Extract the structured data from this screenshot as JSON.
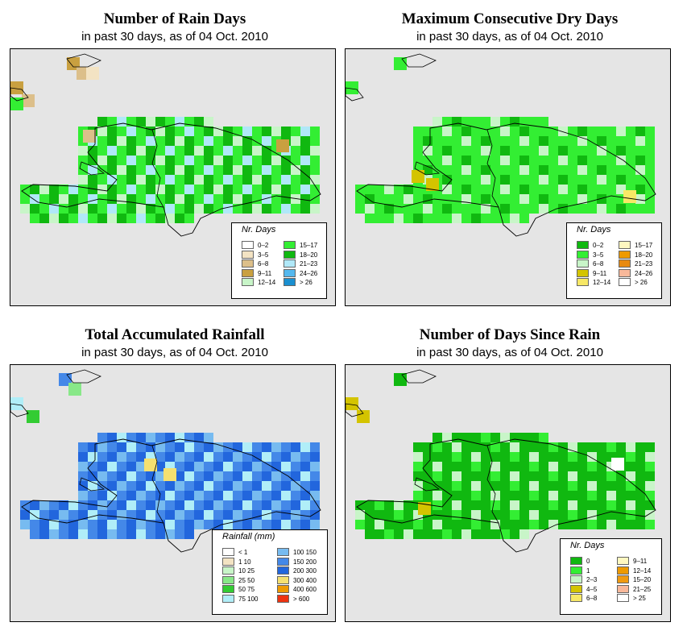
{
  "panels": [
    {
      "title": "Number of Rain Days",
      "subtitle": "in past 30 days, as of  04 Oct. 2010",
      "legend_title": "Nr. Days",
      "legend": [
        {
          "label": "0–2",
          "color": "#ffffff"
        },
        {
          "label": "3–5",
          "color": "#f3e3c3"
        },
        {
          "label": "6–8",
          "color": "#dcbf8a"
        },
        {
          "label": "9–11",
          "color": "#c9a040"
        },
        {
          "label": "12–14",
          "color": "#c8f5c8"
        },
        {
          "label": "15–17",
          "color": "#33ee33"
        },
        {
          "label": "18–20",
          "color": "#10b810"
        },
        {
          "label": "21–23",
          "color": "#b0e8f8"
        },
        {
          "label": "24–26",
          "color": "#55b8ee"
        },
        {
          "label": "> 26",
          "color": "#1a8fd0"
        }
      ]
    },
    {
      "title": "Maximum Consecutive Dry Days",
      "subtitle": "in past 30 days, as of  04 Oct. 2010",
      "legend_title": "Nr. Days",
      "legend": [
        {
          "label": "0–2",
          "color": "#10b810"
        },
        {
          "label": "3–5",
          "color": "#33ee33"
        },
        {
          "label": "6–8",
          "color": "#c8f5c8"
        },
        {
          "label": "9–11",
          "color": "#d4c400"
        },
        {
          "label": "12–14",
          "color": "#f7e866"
        },
        {
          "label": "15–17",
          "color": "#fff8c0"
        },
        {
          "label": "18–20",
          "color": "#ee9a00"
        },
        {
          "label": "21–23",
          "color": "#e88a10"
        },
        {
          "label": "24–26",
          "color": "#f8b89a"
        },
        {
          "label": "> 26",
          "color": "#ffffff"
        }
      ]
    },
    {
      "title": "Total Accumulated Rainfall",
      "subtitle": "in past 30 days, as of  04 Oct. 2010",
      "legend_title": "Rainfall (mm)",
      "legend": [
        {
          "label": "< 1",
          "color": "#ffffff"
        },
        {
          "label": "1    10",
          "color": "#f3e3c3"
        },
        {
          "label": "10    25",
          "color": "#c8f5c8"
        },
        {
          "label": "25    50",
          "color": "#88e888"
        },
        {
          "label": "50    75",
          "color": "#33cc33"
        },
        {
          "label": "75    100",
          "color": "#b0eef8"
        },
        {
          "label": "100    150",
          "color": "#77bbf0"
        },
        {
          "label": "150    200",
          "color": "#4488e8"
        },
        {
          "label": "200    300",
          "color": "#2266dd"
        },
        {
          "label": "300    400",
          "color": "#f5e070"
        },
        {
          "label": "400    600",
          "color": "#ee9a00"
        },
        {
          "label": "> 600",
          "color": "#ee3311"
        }
      ]
    },
    {
      "title": "Number of Days Since Rain",
      "subtitle": "in past 30 days, as of  04 Oct. 2010",
      "legend_title": "Nr. Days",
      "legend": [
        {
          "label": "0",
          "color": "#10b810"
        },
        {
          "label": "1",
          "color": "#33ee33"
        },
        {
          "label": "2–3",
          "color": "#c8f5c8"
        },
        {
          "label": "4–5",
          "color": "#d4c400"
        },
        {
          "label": "6–8",
          "color": "#f7e866"
        },
        {
          "label": "9–11",
          "color": "#fff8c0"
        },
        {
          "label": "12–14",
          "color": "#ee9a00"
        },
        {
          "label": "15–20",
          "color": "#f09a10"
        },
        {
          "label": "21–25",
          "color": "#f8b89a"
        },
        {
          "label": "> 25",
          "color": "#ffffff"
        }
      ]
    }
  ]
}
